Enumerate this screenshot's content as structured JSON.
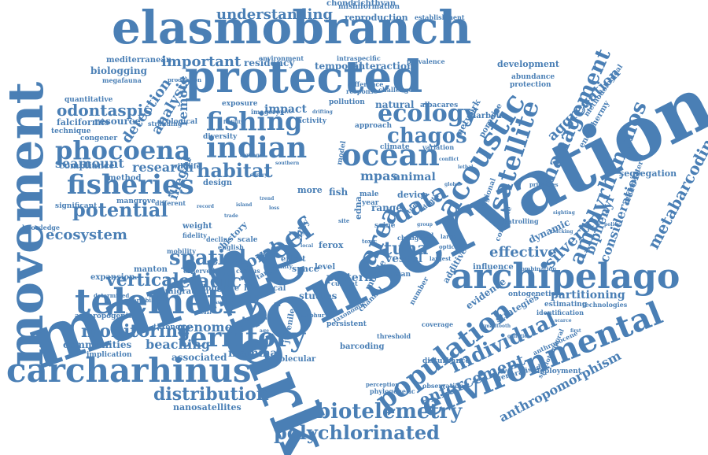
{
  "color": "#4a7fb5",
  "words": [
    "conservation",
    "marine",
    "shark",
    "movement",
    "elasmobranch",
    "protected",
    "telemetry",
    "archipelago",
    "carcharhinus",
    "environmental",
    "population",
    "acoustic",
    "ocean",
    "indian",
    "satellite",
    "reef",
    "area",
    "fisheries",
    "phocoena",
    "territory",
    "fishing",
    "ecology",
    "management",
    "data",
    "biotelemetry",
    "polychlorinated",
    "amblyrhynchos",
    "individual",
    "chagos",
    "spatial",
    "pelagic",
    "monitoring",
    "vertical",
    "potential",
    "distribution",
    "enforcement",
    "metabarcoding",
    "habitat",
    "detection",
    "analysis",
    "important",
    "understanding",
    "odontaspis",
    "aggregation",
    "seamount",
    "ecosystem",
    "silvertip",
    "effective",
    "partitioning",
    "biphenyl",
    "consideration",
    "research",
    "remote",
    "illegal",
    "coral",
    "beaching",
    "genome",
    "mammal",
    "communities",
    "associated",
    "nanosatellites",
    "anthropomorphism",
    "tuna",
    "pattern",
    "vessel",
    "mpas",
    "animal",
    "chondrichthyan",
    "misinformation",
    "reproduction",
    "establishment",
    "residency",
    "temporal",
    "interaction",
    "development",
    "network",
    "porpoise",
    "regional",
    "albacares",
    "impact",
    "natural",
    "resource",
    "biologging",
    "mediterranean",
    "megafauna",
    "quantitative",
    "falciformis",
    "technique",
    "congener",
    "compliance",
    "method",
    "mangrove",
    "significant",
    "knowledge",
    "manton",
    "expansion",
    "migration",
    "longline",
    "taxonomy",
    "anthropogenic",
    "implication",
    "segregation",
    "underwater",
    "endothermy",
    "methodological",
    "abundance",
    "protection",
    "dynamic",
    "evidence",
    "strategies",
    "studies",
    "historical",
    "level",
    "human",
    "space",
    "range",
    "device",
    "mobile",
    "fish",
    "more",
    "wildlife",
    "diversity",
    "exposure",
    "weight",
    "fidelity",
    "decline",
    "history",
    "barcoding",
    "threshold",
    "disturbance",
    "observation",
    "generalised",
    "deployment",
    "identification",
    "technologies",
    "estimating",
    "phylogenetic",
    "juvenile",
    "molecular",
    "persistent",
    "ferox",
    "effect",
    "stranding",
    "design",
    "different",
    "mobility",
    "english",
    "observed",
    "census",
    "target",
    "ecological",
    "climate",
    "spatiotemporal",
    "complete",
    "rate",
    "scale",
    "reveal",
    "harbour",
    "ontogenetic",
    "taxonomic",
    "model",
    "grey",
    "large",
    "year",
    "male",
    "seine",
    "edna",
    "change",
    "variation",
    "approach",
    "activity",
    "pollution",
    "difference",
    "response",
    "challenge",
    "intraspecific",
    "prevalence",
    "ability",
    "imagery",
    "environment",
    "production",
    "patrolling",
    "anthropocene",
    "priorities",
    "additive",
    "influence",
    "combination",
    "largest",
    "optical",
    "number",
    "channel",
    "current",
    "coverage",
    "variability",
    "determined",
    "perception",
    "toxic",
    "sulphur",
    "extensive",
    "fertility",
    "heritage",
    "southern",
    "survey",
    "island",
    "trade",
    "conflict",
    "lethal",
    "global",
    "group",
    "study",
    "depth",
    "tissue",
    "ritual",
    "fin",
    "tag",
    "age",
    "site",
    "local",
    "smalltooth",
    "genetic",
    "scarce",
    "first",
    "sighting",
    "tracking",
    "policy",
    "trend",
    "loss",
    "drifting",
    "record"
  ]
}
